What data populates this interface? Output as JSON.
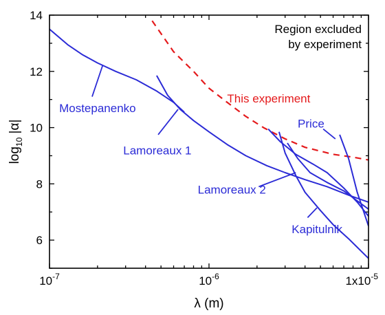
{
  "chart_data": {
    "type": "line",
    "xscale": "log",
    "xlim": [
      1e-07,
      1e-05
    ],
    "ylim": [
      5,
      14
    ],
    "xlabel": "λ (m)",
    "ylabel_base": "log",
    "ylabel_sub": "10",
    "ylabel_rest": " |α|",
    "x_ticks": [
      {
        "value": 1e-07,
        "base": "10",
        "exp": "-7"
      },
      {
        "value": 1e-06,
        "base": "10",
        "exp": "-6"
      },
      {
        "value": 1e-05,
        "base": "1x10",
        "exp": "-5"
      }
    ],
    "y_ticks": [
      6,
      8,
      10,
      12,
      14
    ],
    "annotation": [
      "Region excluded",
      "by experiment"
    ],
    "colors": {
      "experiment": "#e41a1c",
      "bounds": "#2b2bd6",
      "axes": "#000000"
    },
    "series": [
      {
        "name": "This experiment",
        "style": "dashed",
        "color": "#e41a1c",
        "label_at": [
          1.3e-06,
          10.9
        ],
        "points": [
          [
            4.4e-07,
            13.8
          ],
          [
            6e-07,
            12.7
          ],
          [
            8e-07,
            12.0
          ],
          [
            1e-06,
            11.4
          ],
          [
            1.3e-06,
            10.9
          ],
          [
            1.7e-06,
            10.4
          ],
          [
            2.2e-06,
            10.0
          ],
          [
            3e-06,
            9.6
          ],
          [
            4e-06,
            9.3
          ],
          [
            6e-06,
            9.05
          ],
          [
            8e-06,
            8.95
          ],
          [
            1e-05,
            8.85
          ]
        ]
      },
      {
        "name": "Mostepanenko",
        "style": "solid",
        "color": "#2b2bd6",
        "label_at": [
          1.15e-07,
          10.55
        ],
        "leader": [
          [
            1.85e-07,
            11.1
          ],
          [
            2.15e-07,
            12.2
          ]
        ],
        "points": [
          [
            1e-07,
            13.5
          ],
          [
            1.3e-07,
            12.95
          ],
          [
            1.6e-07,
            12.6
          ],
          [
            2e-07,
            12.3
          ],
          [
            2.6e-07,
            12.0
          ],
          [
            3.5e-07,
            11.7
          ],
          [
            4.7e-07,
            11.3
          ],
          [
            6e-07,
            10.9
          ],
          [
            7e-07,
            10.55
          ]
        ]
      },
      {
        "name": "Lamoreaux 1",
        "style": "solid",
        "color": "#2b2bd6",
        "label_at": [
          2.9e-07,
          9.05
        ],
        "leader": [
          [
            4.8e-07,
            9.75
          ],
          [
            6.4e-07,
            10.65
          ]
        ],
        "points": [
          [
            4.7e-07,
            11.85
          ],
          [
            5.5e-07,
            11.15
          ],
          [
            6.6e-07,
            10.65
          ],
          [
            8e-07,
            10.25
          ],
          [
            1e-06,
            9.85
          ],
          [
            1.3e-06,
            9.4
          ],
          [
            1.7e-06,
            9.0
          ],
          [
            2.3e-06,
            8.65
          ],
          [
            3e-06,
            8.4
          ],
          [
            4e-06,
            8.15
          ],
          [
            5.5e-06,
            7.9
          ],
          [
            7.5e-06,
            7.6
          ],
          [
            1e-05,
            7.35
          ]
        ]
      },
      {
        "name": "Lamoreaux 2",
        "style": "solid",
        "color": "#2b2bd6",
        "label_at": [
          8.5e-07,
          7.65
        ],
        "leader": [
          [
            2.05e-06,
            7.9
          ],
          [
            3.5e-06,
            8.4
          ]
        ],
        "points": [
          [
            2.35e-06,
            9.95
          ],
          [
            2.8e-06,
            9.5
          ],
          [
            3.5e-06,
            9.05
          ],
          [
            4.5e-06,
            8.7
          ],
          [
            5.5e-06,
            8.4
          ],
          [
            7e-06,
            7.85
          ],
          [
            8.5e-06,
            7.35
          ],
          [
            1e-05,
            6.85
          ]
        ]
      },
      {
        "name": "Kapitulnik",
        "style": "solid",
        "color": "#2b2bd6",
        "label_at": [
          3.3e-06,
          6.25
        ],
        "leader": [
          [
            4.15e-06,
            6.8
          ],
          [
            4.75e-06,
            7.15
          ]
        ],
        "points": [
          [
            2.75e-06,
            9.85
          ],
          [
            3e-06,
            9.1
          ],
          [
            3.5e-06,
            8.3
          ],
          [
            4e-06,
            7.7
          ],
          [
            5e-06,
            7.05
          ],
          [
            6e-06,
            6.55
          ],
          [
            7.5e-06,
            6.05
          ],
          [
            1e-05,
            5.35
          ]
        ]
      },
      {
        "name": "Price",
        "style": "solid",
        "color": "#2b2bd6",
        "label_at": [
          3.6e-06,
          10.0
        ],
        "leader": [
          [
            5.2e-06,
            9.95
          ],
          [
            6.2e-06,
            9.6
          ]
        ],
        "points": [
          [
            6.6e-06,
            9.75
          ],
          [
            7.5e-06,
            8.9
          ],
          [
            8.5e-06,
            7.7
          ],
          [
            1e-05,
            6.5
          ]
        ]
      },
      {
        "name": "",
        "style": "solid",
        "color": "#2b2bd6",
        "points": [
          [
            3.1e-06,
            9.45
          ],
          [
            3.6e-06,
            8.9
          ],
          [
            4.3e-06,
            8.4
          ],
          [
            5.5e-06,
            8.05
          ],
          [
            7e-06,
            7.75
          ],
          [
            1e-05,
            7.1
          ]
        ]
      }
    ]
  }
}
